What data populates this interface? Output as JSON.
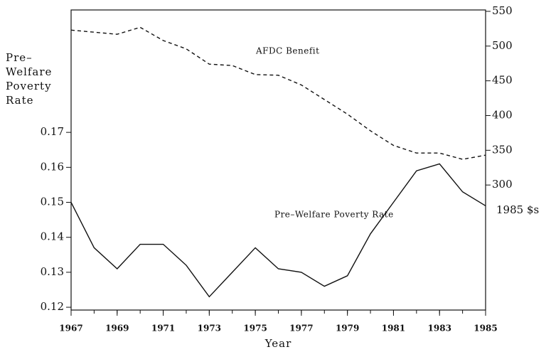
{
  "chart_data": {
    "type": "line",
    "ylabel": [
      "Pre–",
      "Welfare",
      "Poverty",
      "Rate"
    ],
    "y2label": "1985 $s",
    "xlabel": "Year",
    "annotations": [
      "AFDC Benefit",
      "Pre–Welfare Poverty Rate"
    ],
    "x": [
      1967,
      1968,
      1969,
      1970,
      1971,
      1972,
      1973,
      1974,
      1975,
      1976,
      1977,
      1978,
      1979,
      1980,
      1981,
      1982,
      1983,
      1984,
      1985
    ],
    "series": [
      {
        "name": "Pre–Welfare Poverty Rate",
        "color": "#111111",
        "line_style": "solid",
        "axis": "y",
        "values": [
          0.15,
          0.137,
          0.131,
          0.138,
          0.138,
          0.132,
          0.123,
          0.13,
          0.137,
          0.131,
          0.13,
          0.126,
          0.129,
          0.141,
          0.15,
          0.159,
          0.161,
          0.153,
          0.149
        ]
      },
      {
        "name": "AFDC Benefit",
        "color": "#111111",
        "line_style": "dashed",
        "axis": "y2",
        "values": [
          523,
          520,
          517,
          527,
          508,
          496,
          474,
          472,
          459,
          458,
          444,
          423,
          402,
          378,
          357,
          346,
          346,
          337,
          343
        ]
      }
    ],
    "xlim": [
      1967,
      1985
    ],
    "xticks": [
      1967,
      1969,
      1971,
      1973,
      1975,
      1977,
      1979,
      1981,
      1983,
      1985
    ],
    "ylim": [
      0.1192,
      0.205
    ],
    "yticks": [
      0.12,
      0.13,
      0.14,
      0.15,
      0.16,
      0.17
    ],
    "y2lim": [
      120,
      552
    ],
    "y2ticks": [
      300,
      350,
      400,
      450,
      500,
      550
    ]
  }
}
